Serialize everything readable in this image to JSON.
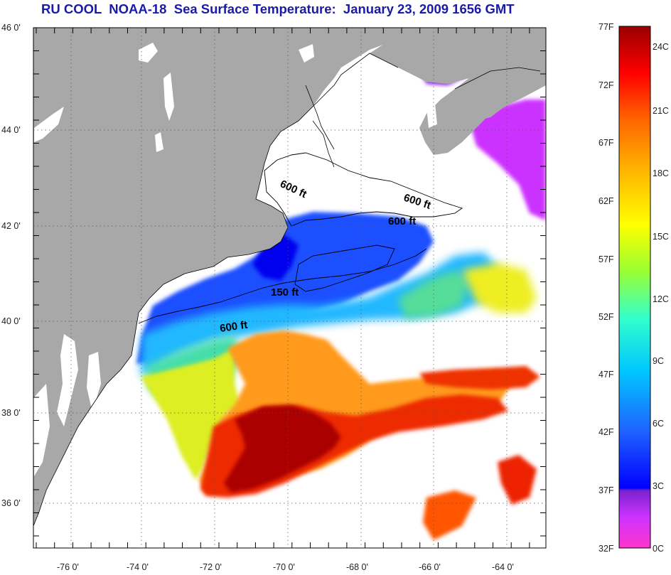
{
  "title": "RU COOL  NOAA-18  Sea Surface Temperature:  January 23, 2009 1656 GMT",
  "axes": {
    "lat_labels": [
      "46 0'",
      "44 0'",
      "42 0'",
      "40 0'",
      "38 0'",
      "36 0'"
    ],
    "lon_labels": [
      "-76 0'",
      "-74 0'",
      "-72 0'",
      "-70 0'",
      "-68 0'",
      "-66 0'",
      "-64 0'"
    ]
  },
  "contours": {
    "labels": [
      "600 ft",
      "600 ft",
      "600 ft",
      "150 ft",
      "600 ft"
    ]
  },
  "colorbar": {
    "fahrenheit": [
      "77F",
      "72F",
      "67F",
      "62F",
      "57F",
      "52F",
      "47F",
      "42F",
      "37F",
      "32F"
    ],
    "celsius": [
      "24C",
      "21C",
      "18C",
      "15C",
      "12C",
      "9C",
      "6C",
      "3C",
      "0C"
    ]
  },
  "colors": {
    "land": "#a8a8a8",
    "no_data": "#ffffff",
    "title": "#1a1aa8",
    "scale": [
      "#ff33cc",
      "#9933ff",
      "#0000ff",
      "#1f77ff",
      "#00ccff",
      "#33ffcc",
      "#99ff33",
      "#ffff00",
      "#ffb000",
      "#ff6600",
      "#ff0000",
      "#aa0000"
    ]
  }
}
